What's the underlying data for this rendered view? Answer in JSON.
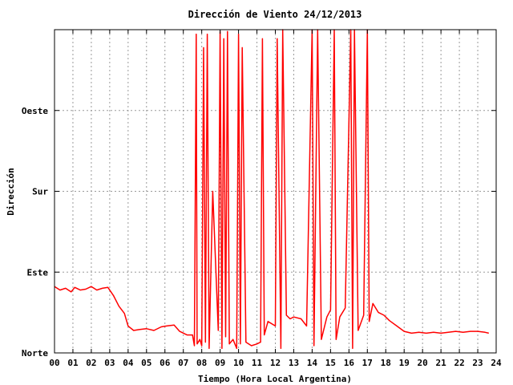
{
  "chart_data": {
    "type": "line",
    "title": "Dirección de Viento 24/12/2013",
    "xlabel": "Tiempo (Hora Local Argentina)",
    "ylabel": "Dirección",
    "xlim": [
      0,
      24
    ],
    "ylim": [
      0,
      360
    ],
    "grid": true,
    "line_color": "#ff0000",
    "x_ticks": [
      {
        "value": 0,
        "label": "00"
      },
      {
        "value": 1,
        "label": "01"
      },
      {
        "value": 2,
        "label": "02"
      },
      {
        "value": 3,
        "label": "03"
      },
      {
        "value": 4,
        "label": "04"
      },
      {
        "value": 5,
        "label": "05"
      },
      {
        "value": 6,
        "label": "06"
      },
      {
        "value": 7,
        "label": "07"
      },
      {
        "value": 8,
        "label": "08"
      },
      {
        "value": 9,
        "label": "09"
      },
      {
        "value": 10,
        "label": "10"
      },
      {
        "value": 11,
        "label": "11"
      },
      {
        "value": 12,
        "label": "12"
      },
      {
        "value": 13,
        "label": "13"
      },
      {
        "value": 14,
        "label": "14"
      },
      {
        "value": 15,
        "label": "15"
      },
      {
        "value": 16,
        "label": "16"
      },
      {
        "value": 17,
        "label": "17"
      },
      {
        "value": 18,
        "label": "18"
      },
      {
        "value": 19,
        "label": "19"
      },
      {
        "value": 20,
        "label": "20"
      },
      {
        "value": 21,
        "label": "21"
      },
      {
        "value": 22,
        "label": "22"
      },
      {
        "value": 23,
        "label": "23"
      },
      {
        "value": 24,
        "label": "24"
      }
    ],
    "y_ticks": [
      {
        "value": 0,
        "label": "Norte"
      },
      {
        "value": 90,
        "label": "Este"
      },
      {
        "value": 180,
        "label": "Sur"
      },
      {
        "value": 270,
        "label": "Oeste"
      }
    ],
    "series": [
      {
        "color": "#ff0000",
        "points": [
          [
            0.0,
            74
          ],
          [
            0.3,
            70
          ],
          [
            0.6,
            72
          ],
          [
            0.9,
            68
          ],
          [
            1.1,
            73
          ],
          [
            1.4,
            70
          ],
          [
            1.7,
            71
          ],
          [
            2.0,
            74
          ],
          [
            2.3,
            70
          ],
          [
            2.6,
            72
          ],
          [
            2.9,
            73
          ],
          [
            3.2,
            64
          ],
          [
            3.5,
            52
          ],
          [
            3.8,
            44
          ],
          [
            4.0,
            30
          ],
          [
            4.3,
            25
          ],
          [
            4.6,
            26
          ],
          [
            5.0,
            27
          ],
          [
            5.4,
            25
          ],
          [
            5.8,
            29
          ],
          [
            6.1,
            30
          ],
          [
            6.5,
            31
          ],
          [
            6.8,
            24
          ],
          [
            7.2,
            20
          ],
          [
            7.5,
            20
          ],
          [
            7.6,
            8
          ],
          [
            7.7,
            355
          ],
          [
            7.75,
            10
          ],
          [
            7.9,
            15
          ],
          [
            8.0,
            8
          ],
          [
            8.1,
            340
          ],
          [
            8.2,
            12
          ],
          [
            8.3,
            355
          ],
          [
            8.4,
            5
          ],
          [
            8.6,
            180
          ],
          [
            8.9,
            25
          ],
          [
            9.0,
            358
          ],
          [
            9.1,
            5
          ],
          [
            9.2,
            350
          ],
          [
            9.3,
            18
          ],
          [
            9.4,
            358
          ],
          [
            9.5,
            10
          ],
          [
            9.7,
            15
          ],
          [
            9.9,
            5
          ],
          [
            10.0,
            355
          ],
          [
            10.1,
            10
          ],
          [
            10.2,
            340
          ],
          [
            10.4,
            12
          ],
          [
            10.7,
            8
          ],
          [
            11.0,
            10
          ],
          [
            11.2,
            12
          ],
          [
            11.3,
            350
          ],
          [
            11.4,
            20
          ],
          [
            11.6,
            35
          ],
          [
            12.0,
            30
          ],
          [
            12.1,
            350
          ],
          [
            12.3,
            5
          ],
          [
            12.4,
            360
          ],
          [
            12.6,
            42
          ],
          [
            12.8,
            38
          ],
          [
            13.0,
            40
          ],
          [
            13.4,
            38
          ],
          [
            13.7,
            30
          ],
          [
            14.0,
            360
          ],
          [
            14.1,
            8
          ],
          [
            14.3,
            360
          ],
          [
            14.5,
            15
          ],
          [
            14.8,
            40
          ],
          [
            15.0,
            48
          ],
          [
            15.2,
            360
          ],
          [
            15.3,
            15
          ],
          [
            15.5,
            40
          ],
          [
            15.8,
            50
          ],
          [
            16.1,
            360
          ],
          [
            16.2,
            5
          ],
          [
            16.3,
            360
          ],
          [
            16.5,
            25
          ],
          [
            16.8,
            42
          ],
          [
            17.0,
            360
          ],
          [
            17.1,
            35
          ],
          [
            17.3,
            55
          ],
          [
            17.6,
            45
          ],
          [
            17.9,
            42
          ],
          [
            18.2,
            36
          ],
          [
            18.6,
            30
          ],
          [
            19.0,
            24
          ],
          [
            19.4,
            22
          ],
          [
            19.8,
            23
          ],
          [
            20.2,
            22
          ],
          [
            20.6,
            23
          ],
          [
            21.0,
            22
          ],
          [
            21.4,
            23
          ],
          [
            21.8,
            24
          ],
          [
            22.2,
            23
          ],
          [
            22.6,
            24
          ],
          [
            23.0,
            24
          ],
          [
            23.4,
            23
          ],
          [
            23.6,
            22
          ]
        ]
      }
    ]
  }
}
